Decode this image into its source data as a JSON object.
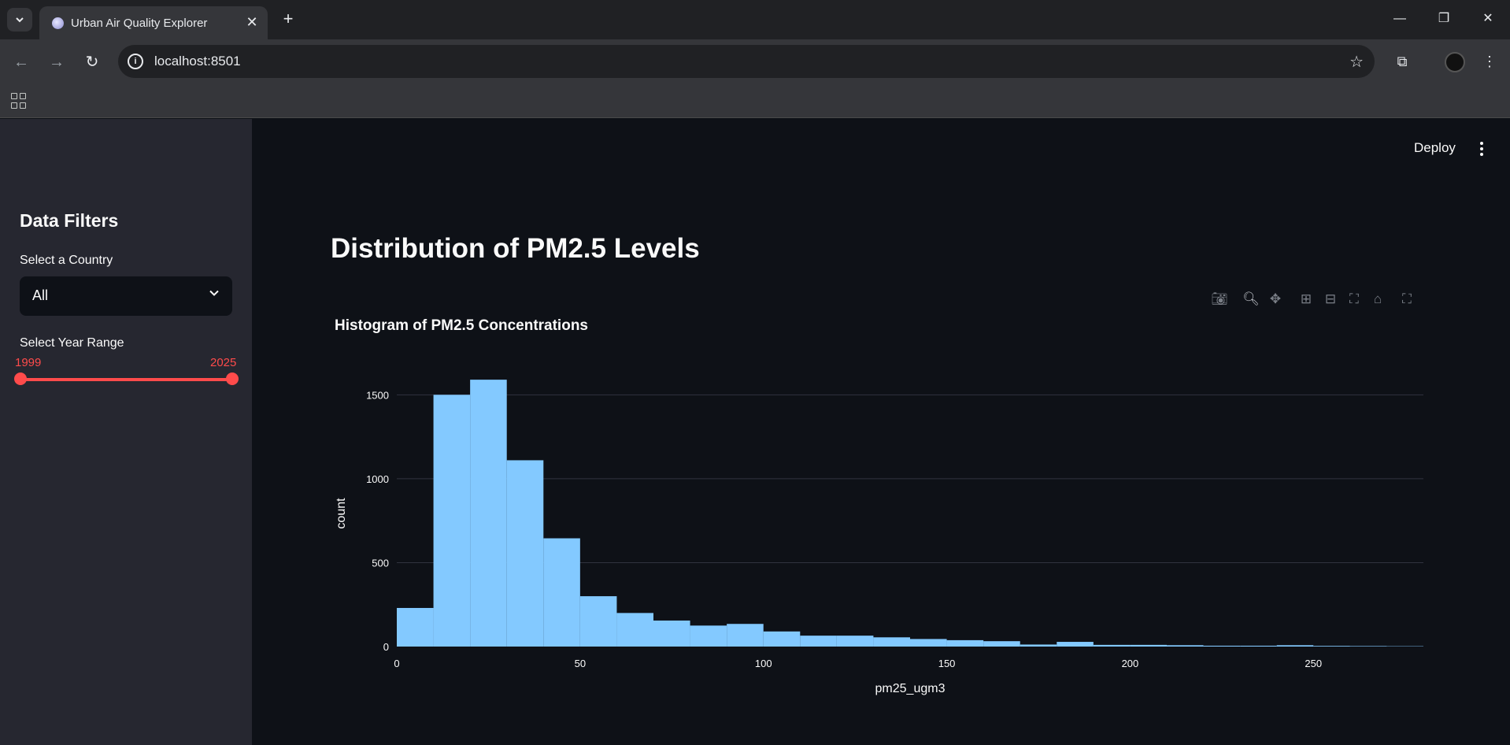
{
  "browser": {
    "tab_title": "Urban Air Quality Explorer",
    "url": "localhost:8501"
  },
  "header": {
    "deploy_label": "Deploy"
  },
  "sidebar": {
    "title": "Data Filters",
    "country_label": "Select a Country",
    "country_value": "All",
    "year_label": "Select Year Range",
    "year_min": "1999",
    "year_max": "2025",
    "range_fraction": [
      0,
      1
    ]
  },
  "main": {
    "page_title": "Distribution of PM2.5 Levels"
  },
  "colors": {
    "bar": "#83c9ff",
    "accent": "#ff4b4b",
    "grid": "#31333f"
  },
  "modebar_icons": [
    "camera-icon",
    "zoom-icon",
    "pan-icon",
    "zoom-in-icon",
    "zoom-out-icon",
    "autoscale-icon",
    "home-icon",
    "fullscreen-icon"
  ],
  "chart_data": {
    "type": "bar",
    "title": "Histogram of PM2.5 Concentrations",
    "xlabel": "pm25_ugm3",
    "ylabel": "count",
    "bin_width": 10,
    "bin_starts": [
      0,
      10,
      20,
      30,
      40,
      50,
      60,
      70,
      80,
      90,
      100,
      110,
      120,
      130,
      140,
      150,
      160,
      170,
      180,
      190,
      200,
      210,
      220,
      230,
      240,
      250,
      260,
      270
    ],
    "values": [
      230,
      1500,
      1590,
      1110,
      645,
      300,
      200,
      155,
      125,
      135,
      90,
      65,
      65,
      55,
      45,
      38,
      32,
      12,
      28,
      10,
      10,
      8,
      5,
      5,
      8,
      4,
      3,
      2
    ],
    "xlim": [
      0,
      280
    ],
    "ylim": [
      0,
      1600
    ],
    "x_ticks": [
      0,
      50,
      100,
      150,
      200,
      250
    ],
    "y_ticks": [
      0,
      500,
      1000,
      1500
    ],
    "grid": true
  }
}
